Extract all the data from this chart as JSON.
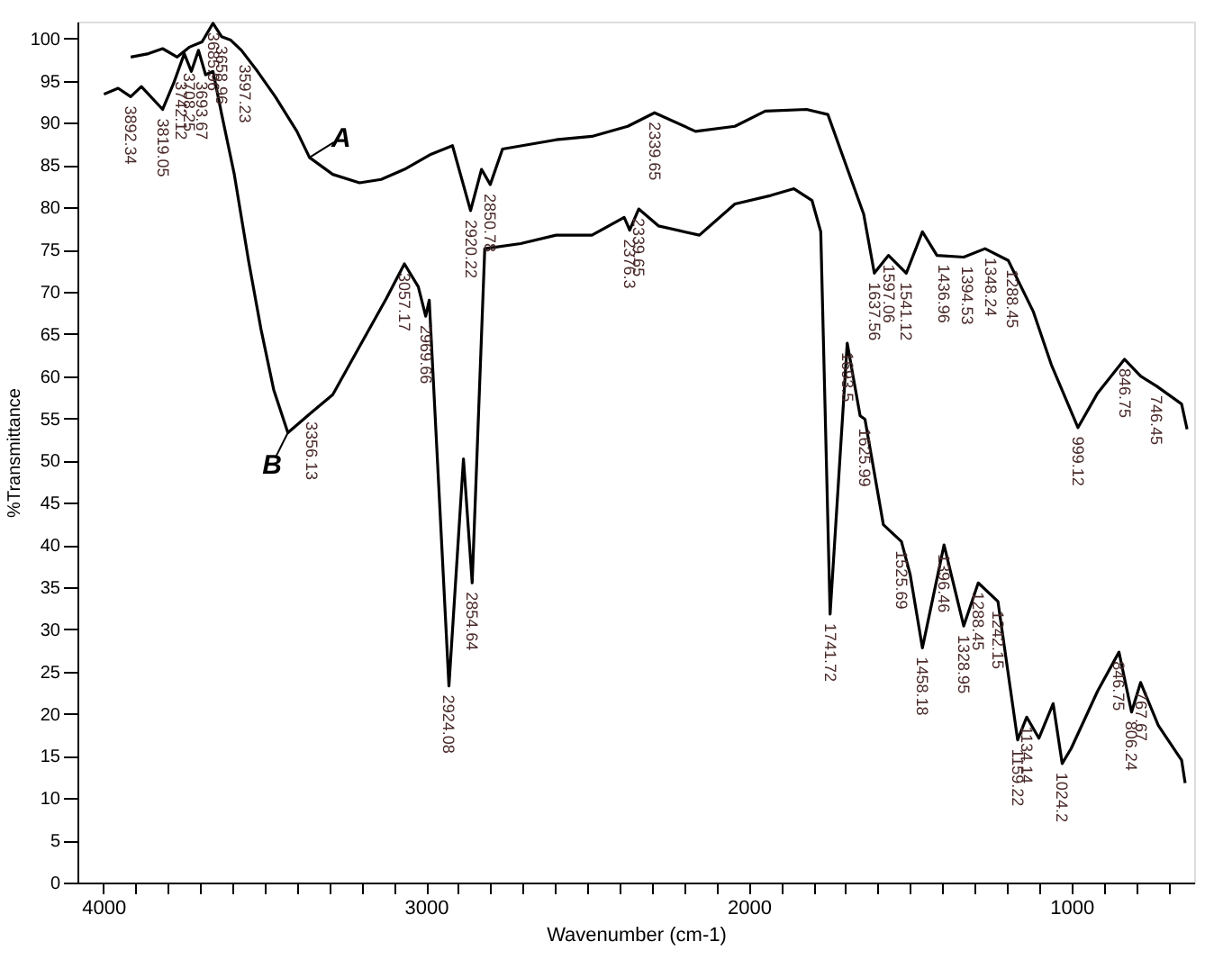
{
  "chart_data": {
    "type": "line",
    "xlabel": "Wavenumber (cm-1)",
    "ylabel": "%Transmittance",
    "xlim": [
      4080,
      620
    ],
    "ylim": [
      0,
      102
    ],
    "xticks": [
      4000,
      {
        "value": 3900,
        "label": null
      },
      {
        "value": 3800,
        "label": null
      },
      {
        "value": 3700,
        "label": null
      },
      {
        "value": 3600,
        "label": null
      },
      {
        "value": 3500,
        "label": null
      },
      {
        "value": 3400,
        "label": null
      },
      {
        "value": 3300,
        "label": null
      },
      {
        "value": 3200,
        "label": null
      },
      {
        "value": 3100,
        "label": null
      },
      3000,
      {
        "value": 2900,
        "label": null
      },
      {
        "value": 2800,
        "label": null
      },
      {
        "value": 2700,
        "label": null
      },
      {
        "value": 2600,
        "label": null
      },
      {
        "value": 2500,
        "label": null
      },
      {
        "value": 2400,
        "label": null
      },
      {
        "value": 2300,
        "label": null
      },
      {
        "value": 2200,
        "label": null
      },
      {
        "value": 2100,
        "label": null
      },
      2000,
      {
        "value": 1900,
        "label": null
      },
      {
        "value": 1800,
        "label": null
      },
      {
        "value": 1700,
        "label": null
      },
      {
        "value": 1600,
        "label": null
      },
      {
        "value": 1500,
        "label": null
      },
      {
        "value": 1400,
        "label": null
      },
      {
        "value": 1300,
        "label": null
      },
      {
        "value": 1200,
        "label": null
      },
      {
        "value": 1100,
        "label": null
      },
      1000,
      {
        "value": 900,
        "label": null
      },
      {
        "value": 800,
        "label": null
      },
      {
        "value": 700,
        "label": null
      }
    ],
    "yticks": [
      0,
      5,
      10,
      15,
      20,
      25,
      30,
      35,
      40,
      45,
      50,
      55,
      60,
      65,
      70,
      75,
      80,
      85,
      90,
      95,
      100
    ],
    "grid": false,
    "series": [
      {
        "name": "A",
        "color": "#000000",
        "x": [
          3915,
          3860,
          3816,
          3771,
          3732,
          3694,
          3660,
          3633,
          3605,
          3572,
          3522,
          3467,
          3400,
          3361,
          3289,
          3206,
          3139,
          3067,
          2984,
          2918,
          2862,
          2828,
          2801,
          2763,
          2597,
          2486,
          2375,
          2292,
          2165,
          2043,
          1949,
          1821,
          1755,
          1694,
          1644,
          1611,
          1567,
          1512,
          1462,
          1417,
          1334,
          1268,
          1196,
          1118,
          1063,
          980,
          919,
          836,
          786,
          736,
          659,
          642
        ],
        "values": [
          97.8,
          98.2,
          98.8,
          97.8,
          99.0,
          99.6,
          101.8,
          100.2,
          99.8,
          98.6,
          96.1,
          93.1,
          89.0,
          85.9,
          83.9,
          82.9,
          83.3,
          84.5,
          86.3,
          87.3,
          79.6,
          84.5,
          82.7,
          86.9,
          88.0,
          88.4,
          89.6,
          91.2,
          89.0,
          89.6,
          91.4,
          91.6,
          91.0,
          84.5,
          79.2,
          72.2,
          74.3,
          72.2,
          77.1,
          74.3,
          74.1,
          75.1,
          73.7,
          67.6,
          61.4,
          53.9,
          58.0,
          62.0,
          60.0,
          58.8,
          56.7,
          53.7
        ]
      },
      {
        "name": "B",
        "color": "#000000",
        "x": [
          3998,
          3954,
          3915,
          3882,
          3816,
          3782,
          3749,
          3727,
          3705,
          3683,
          3660,
          3633,
          3594,
          3550,
          3511,
          3472,
          3428,
          3355,
          3289,
          3206,
          3123,
          3067,
          3024,
          3001,
          2990,
          2929,
          2884,
          2857,
          2818,
          2707,
          2597,
          2486,
          2386,
          2369,
          2341,
          2280,
          2153,
          2043,
          1932,
          1860,
          1804,
          1777,
          1748,
          1695,
          1655,
          1640,
          1583,
          1527,
          1500,
          1462,
          1395,
          1334,
          1289,
          1228,
          1167,
          1139,
          1101,
          1057,
          1029,
          1001,
          919,
          853,
          814,
          786,
          731,
          659,
          648
        ],
        "values": [
          93.4,
          94.1,
          93.1,
          94.3,
          91.6,
          94.7,
          98.2,
          96.1,
          98.6,
          95.7,
          96.1,
          91.0,
          83.9,
          73.7,
          65.5,
          58.4,
          53.3,
          55.7,
          57.8,
          63.5,
          69.2,
          73.3,
          70.6,
          67.1,
          69.0,
          23.3,
          50.2,
          35.5,
          75.1,
          75.7,
          76.7,
          76.7,
          78.8,
          77.3,
          79.8,
          77.8,
          76.7,
          80.4,
          81.4,
          82.2,
          80.8,
          77.1,
          31.8,
          63.9,
          55.3,
          54.9,
          42.4,
          40.4,
          36.5,
          27.8,
          40.0,
          30.4,
          35.5,
          33.3,
          16.9,
          19.6,
          17.1,
          21.2,
          14.1,
          15.9,
          22.7,
          27.3,
          20.2,
          23.7,
          18.6,
          14.5,
          11.8
        ]
      }
    ],
    "annotations": [
      {
        "text": "3892.34",
        "x": 3915,
        "y": 93.1
      },
      {
        "text": "3819.05",
        "x": 3816,
        "y": 91.6
      },
      {
        "text": "3742.12",
        "x": 3760,
        "y": 96.0
      },
      {
        "text": "3708.25",
        "x": 3735,
        "y": 97.0
      },
      {
        "text": "3693.67",
        "x": 3694,
        "y": 96.0
      },
      {
        "text": "3685.96",
        "x": 3660,
        "y": 101.8
      },
      {
        "text": "3658.96",
        "x": 3633,
        "y": 100.2
      },
      {
        "text": "3597.23",
        "x": 3560,
        "y": 98.0
      },
      {
        "text": "3356.13",
        "x": 3355,
        "y": 55.7
      },
      {
        "text": "3057.17",
        "x": 3067,
        "y": 73.3
      },
      {
        "text": "2969.66",
        "x": 3001,
        "y": 67.1
      },
      {
        "text": "2920.22",
        "x": 2862,
        "y": 79.6
      },
      {
        "text": "2850.78",
        "x": 2801,
        "y": 82.7
      },
      {
        "text": "2924.08",
        "x": 2929,
        "y": 23.3
      },
      {
        "text": "2854.64",
        "x": 2857,
        "y": 35.5
      },
      {
        "text": "2376.3",
        "x": 2369,
        "y": 77.3
      },
      {
        "text": "2339.65",
        "x": 2341,
        "y": 79.8
      },
      {
        "text": "2339.65",
        "x": 2292,
        "y": 91.2
      },
      {
        "text": "1741.72",
        "x": 1748,
        "y": 31.8
      },
      {
        "text": "1693.5",
        "x": 1695,
        "y": 63.9
      },
      {
        "text": "1625.99",
        "x": 1640,
        "y": 54.9
      },
      {
        "text": "1637.56",
        "x": 1611,
        "y": 72.2
      },
      {
        "text": "1597.06",
        "x": 1567,
        "y": 74.3
      },
      {
        "text": "1541.12",
        "x": 1512,
        "y": 72.2
      },
      {
        "text": "1436.96",
        "x": 1395,
        "y": 74.3
      },
      {
        "text": "1394.53",
        "x": 1323,
        "y": 74.1
      },
      {
        "text": "1348.24",
        "x": 1251,
        "y": 75.1
      },
      {
        "text": "1288.45",
        "x": 1185,
        "y": 73.7
      },
      {
        "text": "1525.69",
        "x": 1527,
        "y": 40.4
      },
      {
        "text": "1458.18",
        "x": 1462,
        "y": 27.8
      },
      {
        "text": "1396.46",
        "x": 1395,
        "y": 40.0
      },
      {
        "text": "1328.95",
        "x": 1334,
        "y": 30.4
      },
      {
        "text": "1288.45",
        "x": 1289,
        "y": 35.5
      },
      {
        "text": "1242.15",
        "x": 1228,
        "y": 33.3
      },
      {
        "text": "1159.22",
        "x": 1167,
        "y": 16.9
      },
      {
        "text": "1134.14",
        "x": 1139,
        "y": 19.6
      },
      {
        "text": "1024.2",
        "x": 1029,
        "y": 14.1
      },
      {
        "text": "999.12",
        "x": 980,
        "y": 53.9
      },
      {
        "text": "846.75",
        "x": 836,
        "y": 62.0
      },
      {
        "text": "746.45",
        "x": 736,
        "y": 58.8
      },
      {
        "text": "846.75",
        "x": 853,
        "y": 27.3
      },
      {
        "text": "806.24",
        "x": 814,
        "y": 20.2
      },
      {
        "text": "767.67",
        "x": 786,
        "y": 23.7
      }
    ]
  }
}
